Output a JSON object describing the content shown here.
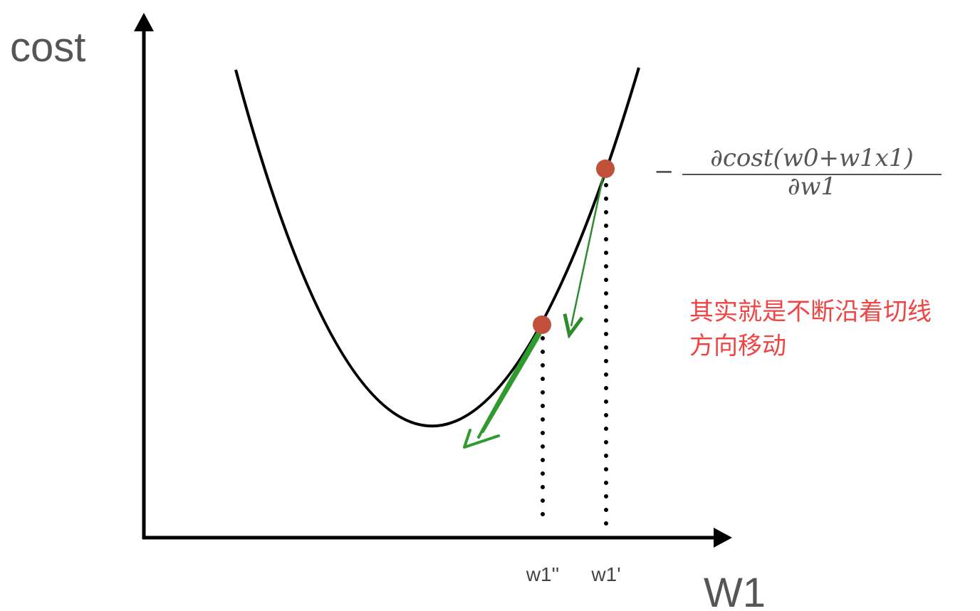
{
  "axes": {
    "y_label": "cost",
    "x_label": "W1"
  },
  "ticks": {
    "w1_second": "w1''",
    "w1_prime": "w1'"
  },
  "formula": {
    "sign": "−",
    "numerator": "∂cost(w0+w1x1)",
    "denominator": "∂w1"
  },
  "annotation": {
    "line1": "其实就是不断沿着切线",
    "line2": "方向移动"
  },
  "colors": {
    "curve": "#000000",
    "point": "#c0503a",
    "arrow": "#2e8b2e",
    "annotation": "#ee4444",
    "axis": "#000000"
  }
}
